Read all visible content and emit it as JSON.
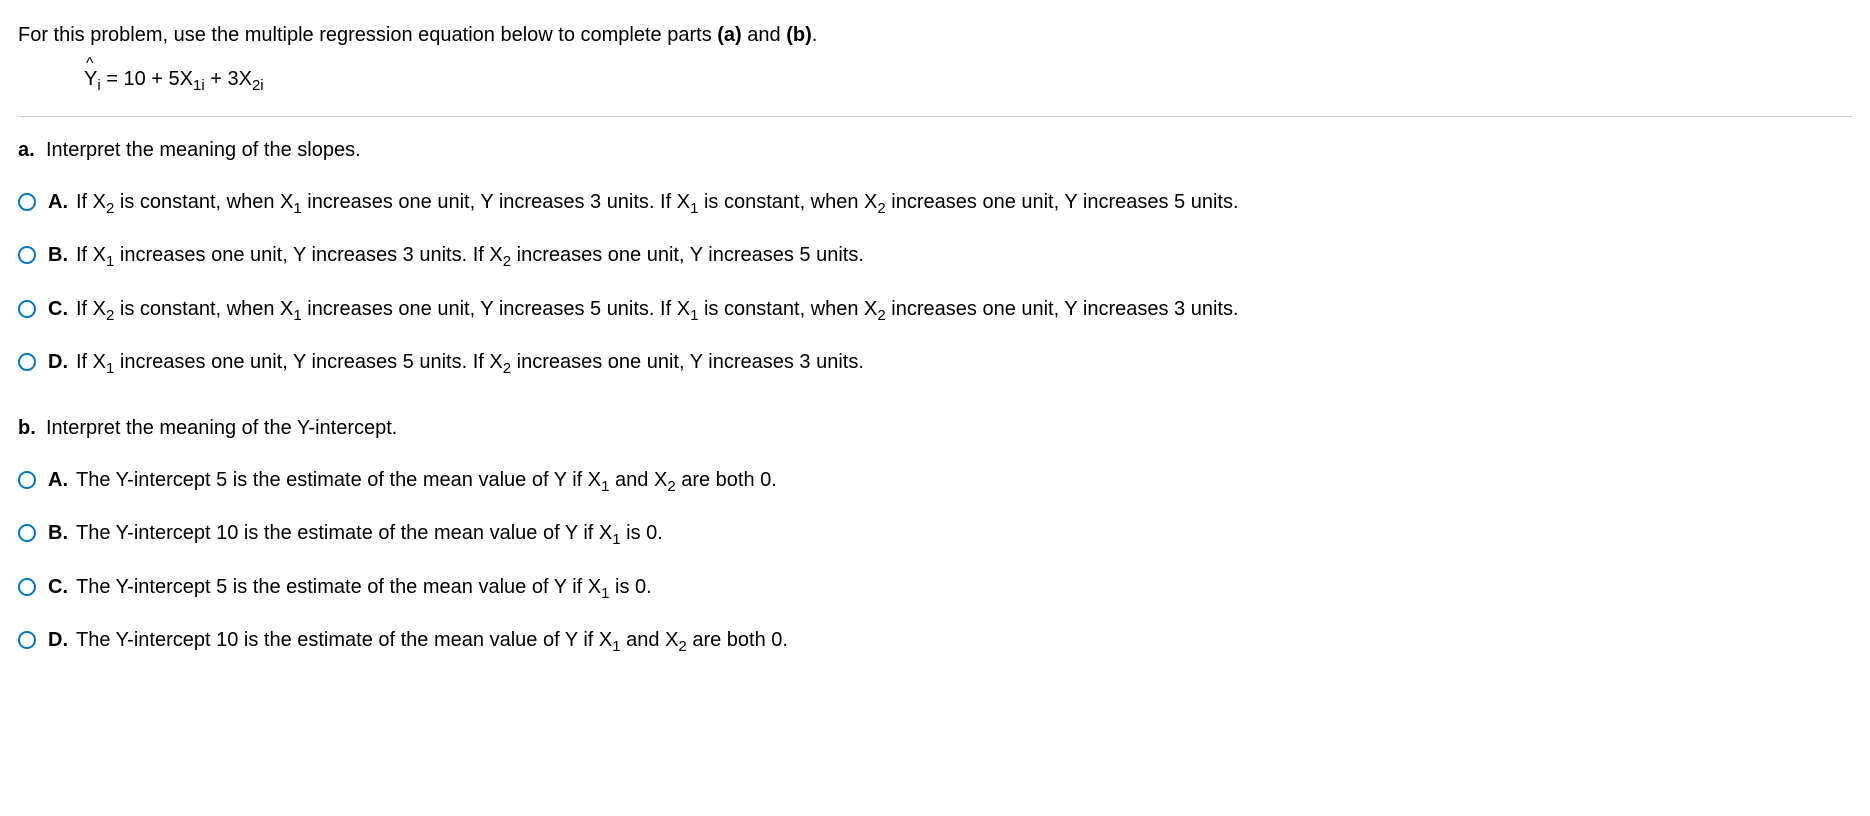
{
  "intro": "For this problem, use the multiple regression equation below to complete parts (a) and (b).",
  "equation": {
    "lhs": "Y",
    "lhs_sub": "i",
    "rhs_prefix": " = 10 + 5X",
    "rhs_sub1": "1i",
    "rhs_mid": " + 3X",
    "rhs_sub2": "2i"
  },
  "partA": {
    "letter": "a.",
    "prompt": "Interpret the meaning of the slopes.",
    "choices": {
      "A": {
        "letter": "A.",
        "seg1": "If X",
        "sub1": "2",
        "seg2": " is constant, when X",
        "sub2": "1",
        "seg3": " increases one unit, Y increases 3 units.  If X",
        "sub3": "1",
        "seg4": " is constant, when X",
        "sub4": "2",
        "seg5": " increases one unit, Y increases 5 units."
      },
      "B": {
        "letter": "B.",
        "seg1": "If X",
        "sub1": "1",
        "seg2": " increases one unit, Y increases 3 units.  If X",
        "sub2": "2",
        "seg3": " increases one unit, Y increases 5 units."
      },
      "C": {
        "letter": "C.",
        "seg1": "If X",
        "sub1": "2",
        "seg2": " is constant, when X",
        "sub2": "1",
        "seg3": " increases one unit, Y increases 5 units.  If X",
        "sub3": "1",
        "seg4": " is constant, when X",
        "sub4": "2",
        "seg5": " increases one unit, Y increases 3 units."
      },
      "D": {
        "letter": "D.",
        "seg1": "If X",
        "sub1": "1",
        "seg2": " increases one unit, Y increases 5 units.  If X",
        "sub2": "2",
        "seg3": " increases one unit, Y increases 3 units."
      }
    }
  },
  "partB": {
    "letter": "b.",
    "prompt": "Interpret the meaning of the Y-intercept.",
    "choices": {
      "A": {
        "letter": "A.",
        "seg1": "The Y-intercept 5 is the estimate of the mean value of Y if X",
        "sub1": "1",
        "seg2": " and X",
        "sub2": "2",
        "seg3": " are both 0."
      },
      "B": {
        "letter": "B.",
        "seg1": "The Y-intercept 10 is the estimate of the mean value of Y if X",
        "sub1": "1",
        "seg2": " is 0."
      },
      "C": {
        "letter": "C.",
        "seg1": "The Y-intercept 5 is the estimate of the mean value of Y if X",
        "sub1": "1",
        "seg2": " is 0."
      },
      "D": {
        "letter": "D.",
        "seg1": "The Y-intercept 10 is the estimate of the mean value of Y if X",
        "sub1": "1",
        "seg2": " and X",
        "sub2": "2",
        "seg3": " are both 0."
      }
    }
  }
}
